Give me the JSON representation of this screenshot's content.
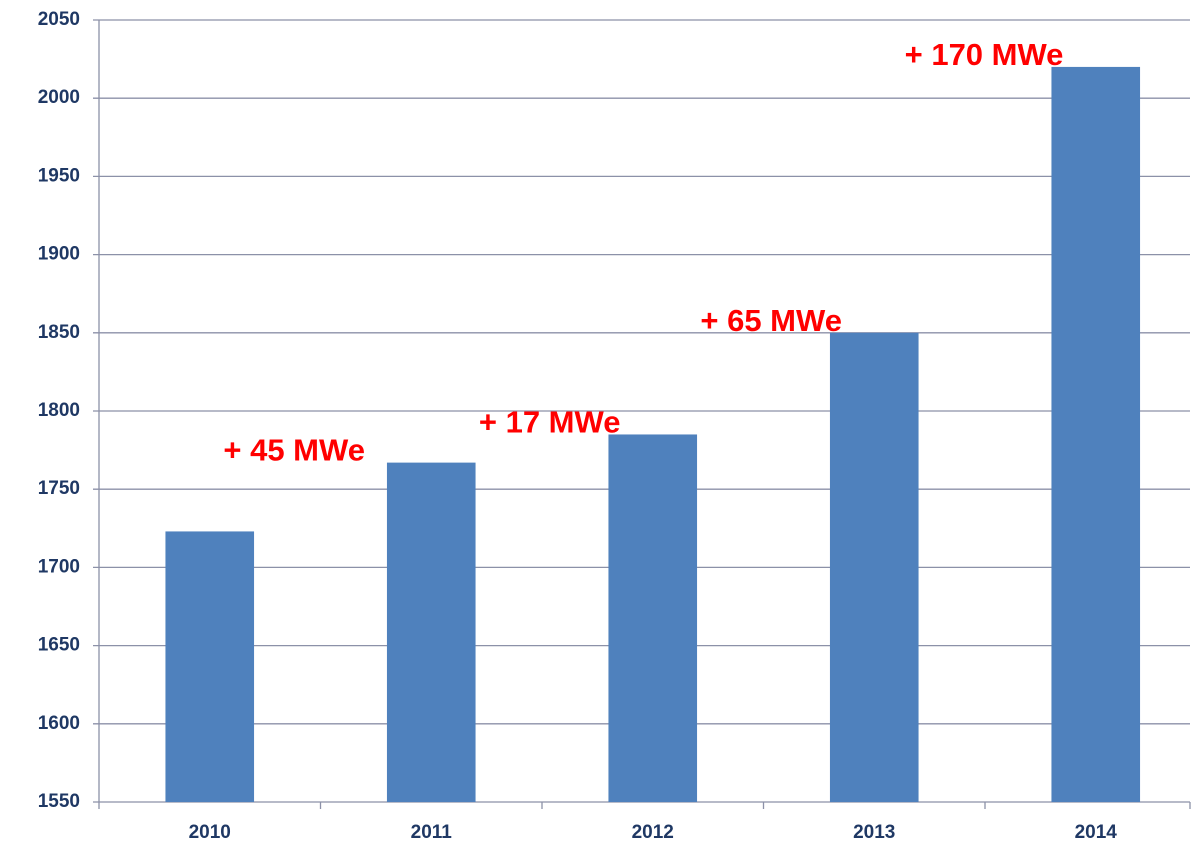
{
  "chart_data": {
    "type": "bar",
    "categories": [
      "2010",
      "2011",
      "2012",
      "2013",
      "2014"
    ],
    "values": [
      1723,
      1767,
      1785,
      1850,
      2020
    ],
    "color": "#4f81bd",
    "ylim": [
      1550,
      2050
    ],
    "yticks": [
      1550,
      1600,
      1650,
      1700,
      1750,
      1800,
      1850,
      1900,
      1950,
      2000,
      2050
    ],
    "grid": true,
    "annotations": [
      "+ 45 MWe",
      "+ 17 MWe",
      "+ 65 MWe",
      "+ 170 MWe"
    ],
    "annotation_color": "#ff0000"
  }
}
